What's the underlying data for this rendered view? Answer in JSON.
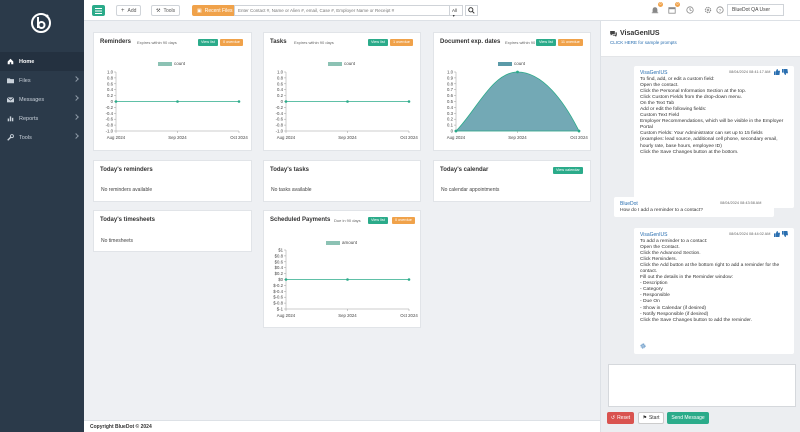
{
  "sidebar": {
    "items": [
      {
        "label": "Home",
        "icon": "home-icon"
      },
      {
        "label": "Files",
        "icon": "folder-icon"
      },
      {
        "label": "Messages",
        "icon": "envelope-icon"
      },
      {
        "label": "Reports",
        "icon": "chart-icon"
      },
      {
        "label": "Tools",
        "icon": "wrench-icon"
      }
    ]
  },
  "topbar": {
    "add_label": "Add",
    "tools_label": "Tools",
    "recent_label": "Recent Files",
    "search_placeholder": "Enter Contact #, Name or Alien #, email, Case #, Employer Name or Receipt #",
    "search_scope": "All",
    "notif_count_1": "0",
    "notif_count_2": "0",
    "user": "BlueDot QA User"
  },
  "cards": {
    "reminders": {
      "title": "Reminders",
      "sub": "Expires within 90 days",
      "btn_view": "View list",
      "btn_over": "0 overdue",
      "legend": "count"
    },
    "tasks": {
      "title": "Tasks",
      "sub": "Expires within 90 days",
      "btn_view": "View list",
      "btn_over": "1 overdue",
      "legend": "count"
    },
    "docs": {
      "title": "Document exp. dates",
      "sub": "Expires within 90 days",
      "btn_view": "View list",
      "btn_over": "11 overdue",
      "legend": "count"
    },
    "today_reminders": {
      "title": "Today's reminders",
      "empty": "No reminders available"
    },
    "today_tasks": {
      "title": "Today's tasks",
      "empty": "No tasks available"
    },
    "today_calendar": {
      "title": "Today's calendar",
      "btn": "View calendar",
      "empty": "No calendar appointments"
    },
    "today_timesheets": {
      "title": "Today's timesheets",
      "empty": "No timesheets"
    },
    "payments": {
      "title": "Scheduled Payments",
      "sub": "Due in 90 days",
      "btn_view": "View list",
      "btn_over": "0 overdue",
      "legend": "amount"
    }
  },
  "footer": {
    "text": "Copyright BlueDot © 2024"
  },
  "chat": {
    "title": "VisaGenIUS",
    "link": "CLICK HERE for sample prompts",
    "messages": [
      {
        "name": "VisaGenIUS",
        "time": "08/04/2024 08:41:17 AM",
        "lines": [
          "To find, add, or edit a custom field:",
          "Open the contact.",
          "Click the Personal Information Section at the top.",
          "Click Custom Fields from the drop-down menu.",
          "On the Text Tab",
          "Add or edit the following fields:",
          "Custom Text Field",
          "Employer Recommendations, which will be visible in the Employer",
          "Portal",
          "Custom Fields: Your Administrator can set up to 15 fields",
          "(examples: lead source, additional cell phone, secondary email,",
          "hourly rate, base hours, employee ID)",
          "Click the Save Changes button at the bottom."
        ]
      },
      {
        "name": "BlueDot",
        "time": "08/04/2024 08:43:58 AM",
        "lines": [
          "How do I add a reminder to a contact?"
        ]
      },
      {
        "name": "VisaGenIUS",
        "time": "08/04/2024 08:44:02 AM",
        "lines": [
          "To add a reminder to a contact:",
          "Open the Contact.",
          "Click the Advanced Section.",
          "Click Reminders.",
          "Click the Add button at the bottom right to add a reminder for the",
          "contact.",
          "Fill out the details in the Reminder window:",
          "- Description",
          "- Category",
          "- Responsible",
          "- Due On",
          "- Show in Calendar (if desired)",
          "- Notify Responsible (if desired)",
          "Click the Save Changes button to add the reminder."
        ]
      }
    ],
    "reset_label": "Reset",
    "start_label": "Start",
    "send_label": "Send Message"
  },
  "chart_data": [
    {
      "type": "line",
      "title": "Reminders",
      "x": [
        "Aug 2024",
        "Sep 2024",
        "Oct 2024"
      ],
      "series": [
        {
          "name": "count",
          "values": [
            0,
            0,
            0
          ]
        }
      ],
      "yticks": [
        "1.0",
        "0.8",
        "0.6",
        "0.4",
        "0.2",
        "0",
        "-0.2",
        "-0.4",
        "-0.6",
        "-0.8",
        "-1.0"
      ],
      "ylim": [
        -1,
        1
      ]
    },
    {
      "type": "line",
      "title": "Tasks",
      "x": [
        "Aug 2024",
        "Sep 2024",
        "Oct 2024"
      ],
      "series": [
        {
          "name": "count",
          "values": [
            0,
            0,
            0
          ]
        }
      ],
      "yticks": [
        "1.0",
        "0.8",
        "0.6",
        "0.4",
        "0.2",
        "0",
        "-0.2",
        "-0.4",
        "-0.6",
        "-0.8",
        "-1.0"
      ],
      "ylim": [
        -1,
        1
      ]
    },
    {
      "type": "area",
      "title": "Document exp. dates",
      "x": [
        "Aug 2024",
        "Sep 2024",
        "Oct 2024"
      ],
      "series": [
        {
          "name": "count",
          "values": [
            0,
            1,
            0
          ]
        }
      ],
      "yticks": [
        "1.0",
        "0.9",
        "0.8",
        "0.7",
        "0.6",
        "0.5",
        "0.4",
        "0.3",
        "0.2",
        "0.1",
        "0"
      ],
      "ylim": [
        0,
        1
      ]
    },
    {
      "type": "line",
      "title": "Scheduled Payments",
      "x": [
        "Aug 2024",
        "Sep 2024",
        "Oct 2024"
      ],
      "series": [
        {
          "name": "amount",
          "values": [
            0,
            0,
            0
          ]
        }
      ],
      "yticks": [
        "$1",
        "$0.8",
        "$0.6",
        "$0.4",
        "$0.2",
        "$0",
        "$-0.2",
        "$-0.4",
        "$-0.6",
        "$-0.8",
        "$-1"
      ],
      "ylim": [
        -1,
        1
      ]
    }
  ],
  "colors": {
    "accent": "#2bab8a",
    "warning": "#f0a24a",
    "sidebar": "#2b3a4a",
    "area": "#5b9aa8",
    "link": "#2a6fb0"
  }
}
